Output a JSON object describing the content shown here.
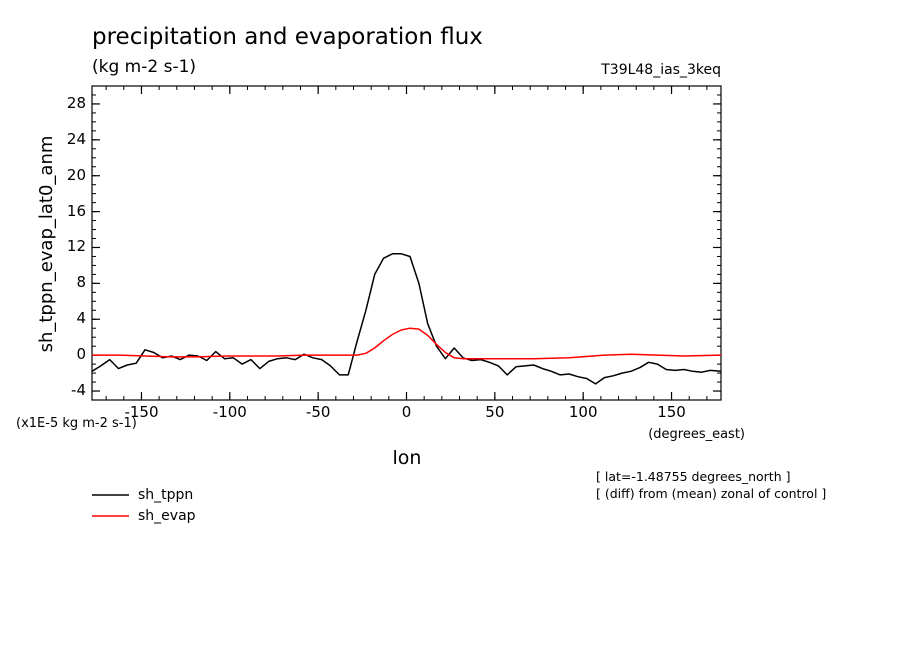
{
  "chart_data": {
    "type": "line",
    "title": "precipitation and evaporation flux",
    "subtitle": "(kg m-2 s-1)",
    "run_label": "T39L48_ias_3keq",
    "ylabel": "sh_tppn_evap_lat0_anm",
    "xlabel": "lon",
    "x_units": "(degrees_east)",
    "y_scale_note": "(x1E-5 kg m-2 s-1)",
    "note_lat": "[ lat=-1.48755 degrees_north ]",
    "note_diff": "[ (diff) from (mean) zonal of control ]",
    "xlim": [
      -178,
      178
    ],
    "ylim": [
      -5,
      30
    ],
    "xticks": [
      -150,
      -100,
      -50,
      0,
      50,
      100,
      150
    ],
    "xtick_labels": [
      "-150",
      "-100",
      "-50",
      "0",
      "50",
      "100",
      "150"
    ],
    "yticks": [
      -4,
      0,
      4,
      8,
      12,
      16,
      20,
      24,
      28
    ],
    "ytick_labels": [
      "-4",
      "0",
      "4",
      "8",
      "12",
      "16",
      "20",
      "24",
      "28"
    ],
    "legend_position": "bottom-left",
    "series": [
      {
        "name": "sh_tppn",
        "color": "#000000",
        "x": [
          -178,
          -173,
          -168,
          -163,
          -158,
          -153,
          -148,
          -143,
          -138,
          -133,
          -128,
          -123,
          -118,
          -113,
          -108,
          -103,
          -98,
          -93,
          -88,
          -83,
          -78,
          -73,
          -68,
          -63,
          -58,
          -53,
          -48,
          -43,
          -38,
          -33,
          -28,
          -23,
          -18,
          -13,
          -8,
          -3,
          2,
          7,
          12,
          17,
          22,
          27,
          32,
          37,
          42,
          47,
          52,
          57,
          62,
          67,
          72,
          77,
          82,
          87,
          92,
          97,
          102,
          107,
          112,
          117,
          122,
          127,
          132,
          137,
          142,
          147,
          152,
          157,
          162,
          167,
          172,
          178
        ],
        "values": [
          -1.8,
          -1.2,
          -0.5,
          -1.5,
          -1.1,
          -0.9,
          0.6,
          0.3,
          -0.3,
          -0.1,
          -0.5,
          0.0,
          -0.1,
          -0.6,
          0.4,
          -0.4,
          -0.3,
          -1.0,
          -0.5,
          -1.5,
          -0.7,
          -0.4,
          -0.3,
          -0.5,
          0.1,
          -0.3,
          -0.5,
          -1.2,
          -2.2,
          -2.2,
          1.5,
          5.0,
          9.0,
          10.8,
          11.3,
          11.3,
          11.0,
          8.0,
          3.5,
          1.0,
          -0.4,
          0.8,
          -0.3,
          -0.6,
          -0.5,
          -0.8,
          -1.2,
          -2.2,
          -1.3,
          -1.2,
          -1.1,
          -1.5,
          -1.8,
          -2.2,
          -2.1,
          -2.4,
          -2.6,
          -3.2,
          -2.5,
          -2.3,
          -2.0,
          -1.8,
          -1.4,
          -0.8,
          -1.0,
          -1.6,
          -1.7,
          -1.6,
          -1.8,
          -1.9,
          -1.7,
          -1.8
        ]
      },
      {
        "name": "sh_evap",
        "color": "#ff0000",
        "x": [
          -178,
          -163,
          -148,
          -133,
          -118,
          -103,
          -88,
          -73,
          -58,
          -43,
          -28,
          -23,
          -18,
          -13,
          -8,
          -3,
          2,
          7,
          12,
          17,
          22,
          27,
          32,
          37,
          52,
          72,
          92,
          112,
          127,
          142,
          157,
          178
        ],
        "values": [
          0.0,
          0.0,
          -0.1,
          -0.2,
          -0.2,
          -0.1,
          -0.1,
          -0.1,
          0.0,
          0.0,
          0.0,
          0.2,
          0.8,
          1.6,
          2.3,
          2.8,
          3.0,
          2.9,
          2.2,
          1.2,
          0.3,
          -0.3,
          -0.4,
          -0.4,
          -0.4,
          -0.4,
          -0.3,
          0.0,
          0.1,
          0.0,
          -0.1,
          0.0
        ]
      }
    ]
  }
}
